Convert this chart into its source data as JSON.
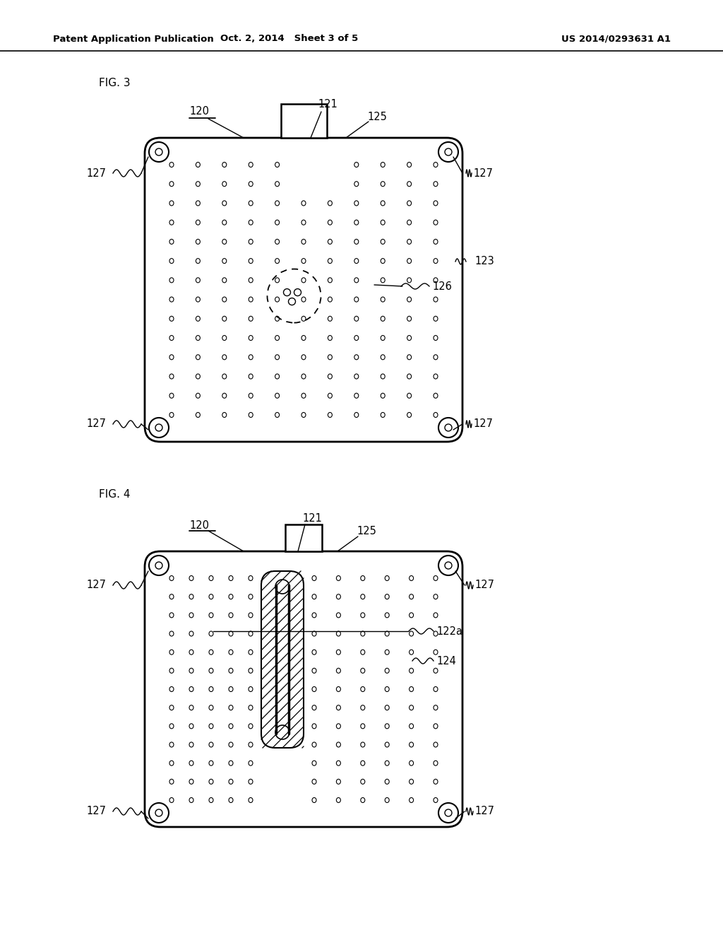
{
  "bg_color": "#ffffff",
  "header_left": "Patent Application Publication",
  "header_mid": "Oct. 2, 2014   Sheet 3 of 5",
  "header_right": "US 2014/0293631 A1",
  "fig3_label": "FIG. 3",
  "fig4_label": "FIG. 4",
  "line_color": "#000000",
  "dot_color": "#000000"
}
